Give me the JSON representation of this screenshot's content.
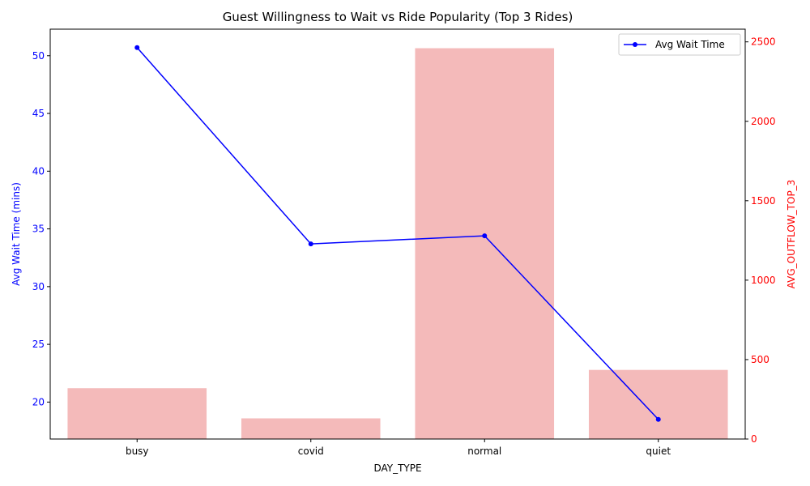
{
  "chart_data": {
    "type": "bar+line",
    "title": "Guest Willingness to Wait vs Ride Popularity (Top 3 Rides)",
    "xlabel": "DAY_TYPE",
    "categories": [
      "busy",
      "covid",
      "normal",
      "quiet"
    ],
    "left_axis": {
      "label": "Avg Wait Time (mins)",
      "color": "#0000ff",
      "ylim": [
        16.8,
        52.3
      ],
      "ticks": [
        20,
        25,
        30,
        35,
        40,
        45,
        50
      ]
    },
    "right_axis": {
      "label": "AVG_OUTFLOW_TOP_3",
      "color": "#ff0000",
      "ylim": [
        0,
        2580
      ],
      "ticks": [
        0,
        500,
        1000,
        1500,
        2000,
        2500
      ]
    },
    "series": [
      {
        "name": "Avg Wait Time",
        "type": "line",
        "axis": "left",
        "color": "#0000ff",
        "marker": "circle",
        "values": [
          50.7,
          33.7,
          34.4,
          18.5
        ]
      },
      {
        "type": "bar",
        "axis": "right",
        "color": "#f4baba",
        "values": [
          320,
          130,
          2460,
          435
        ]
      }
    ],
    "legend": {
      "placement": "top-right",
      "entries": [
        "Avg Wait Time"
      ]
    },
    "grid": false
  }
}
